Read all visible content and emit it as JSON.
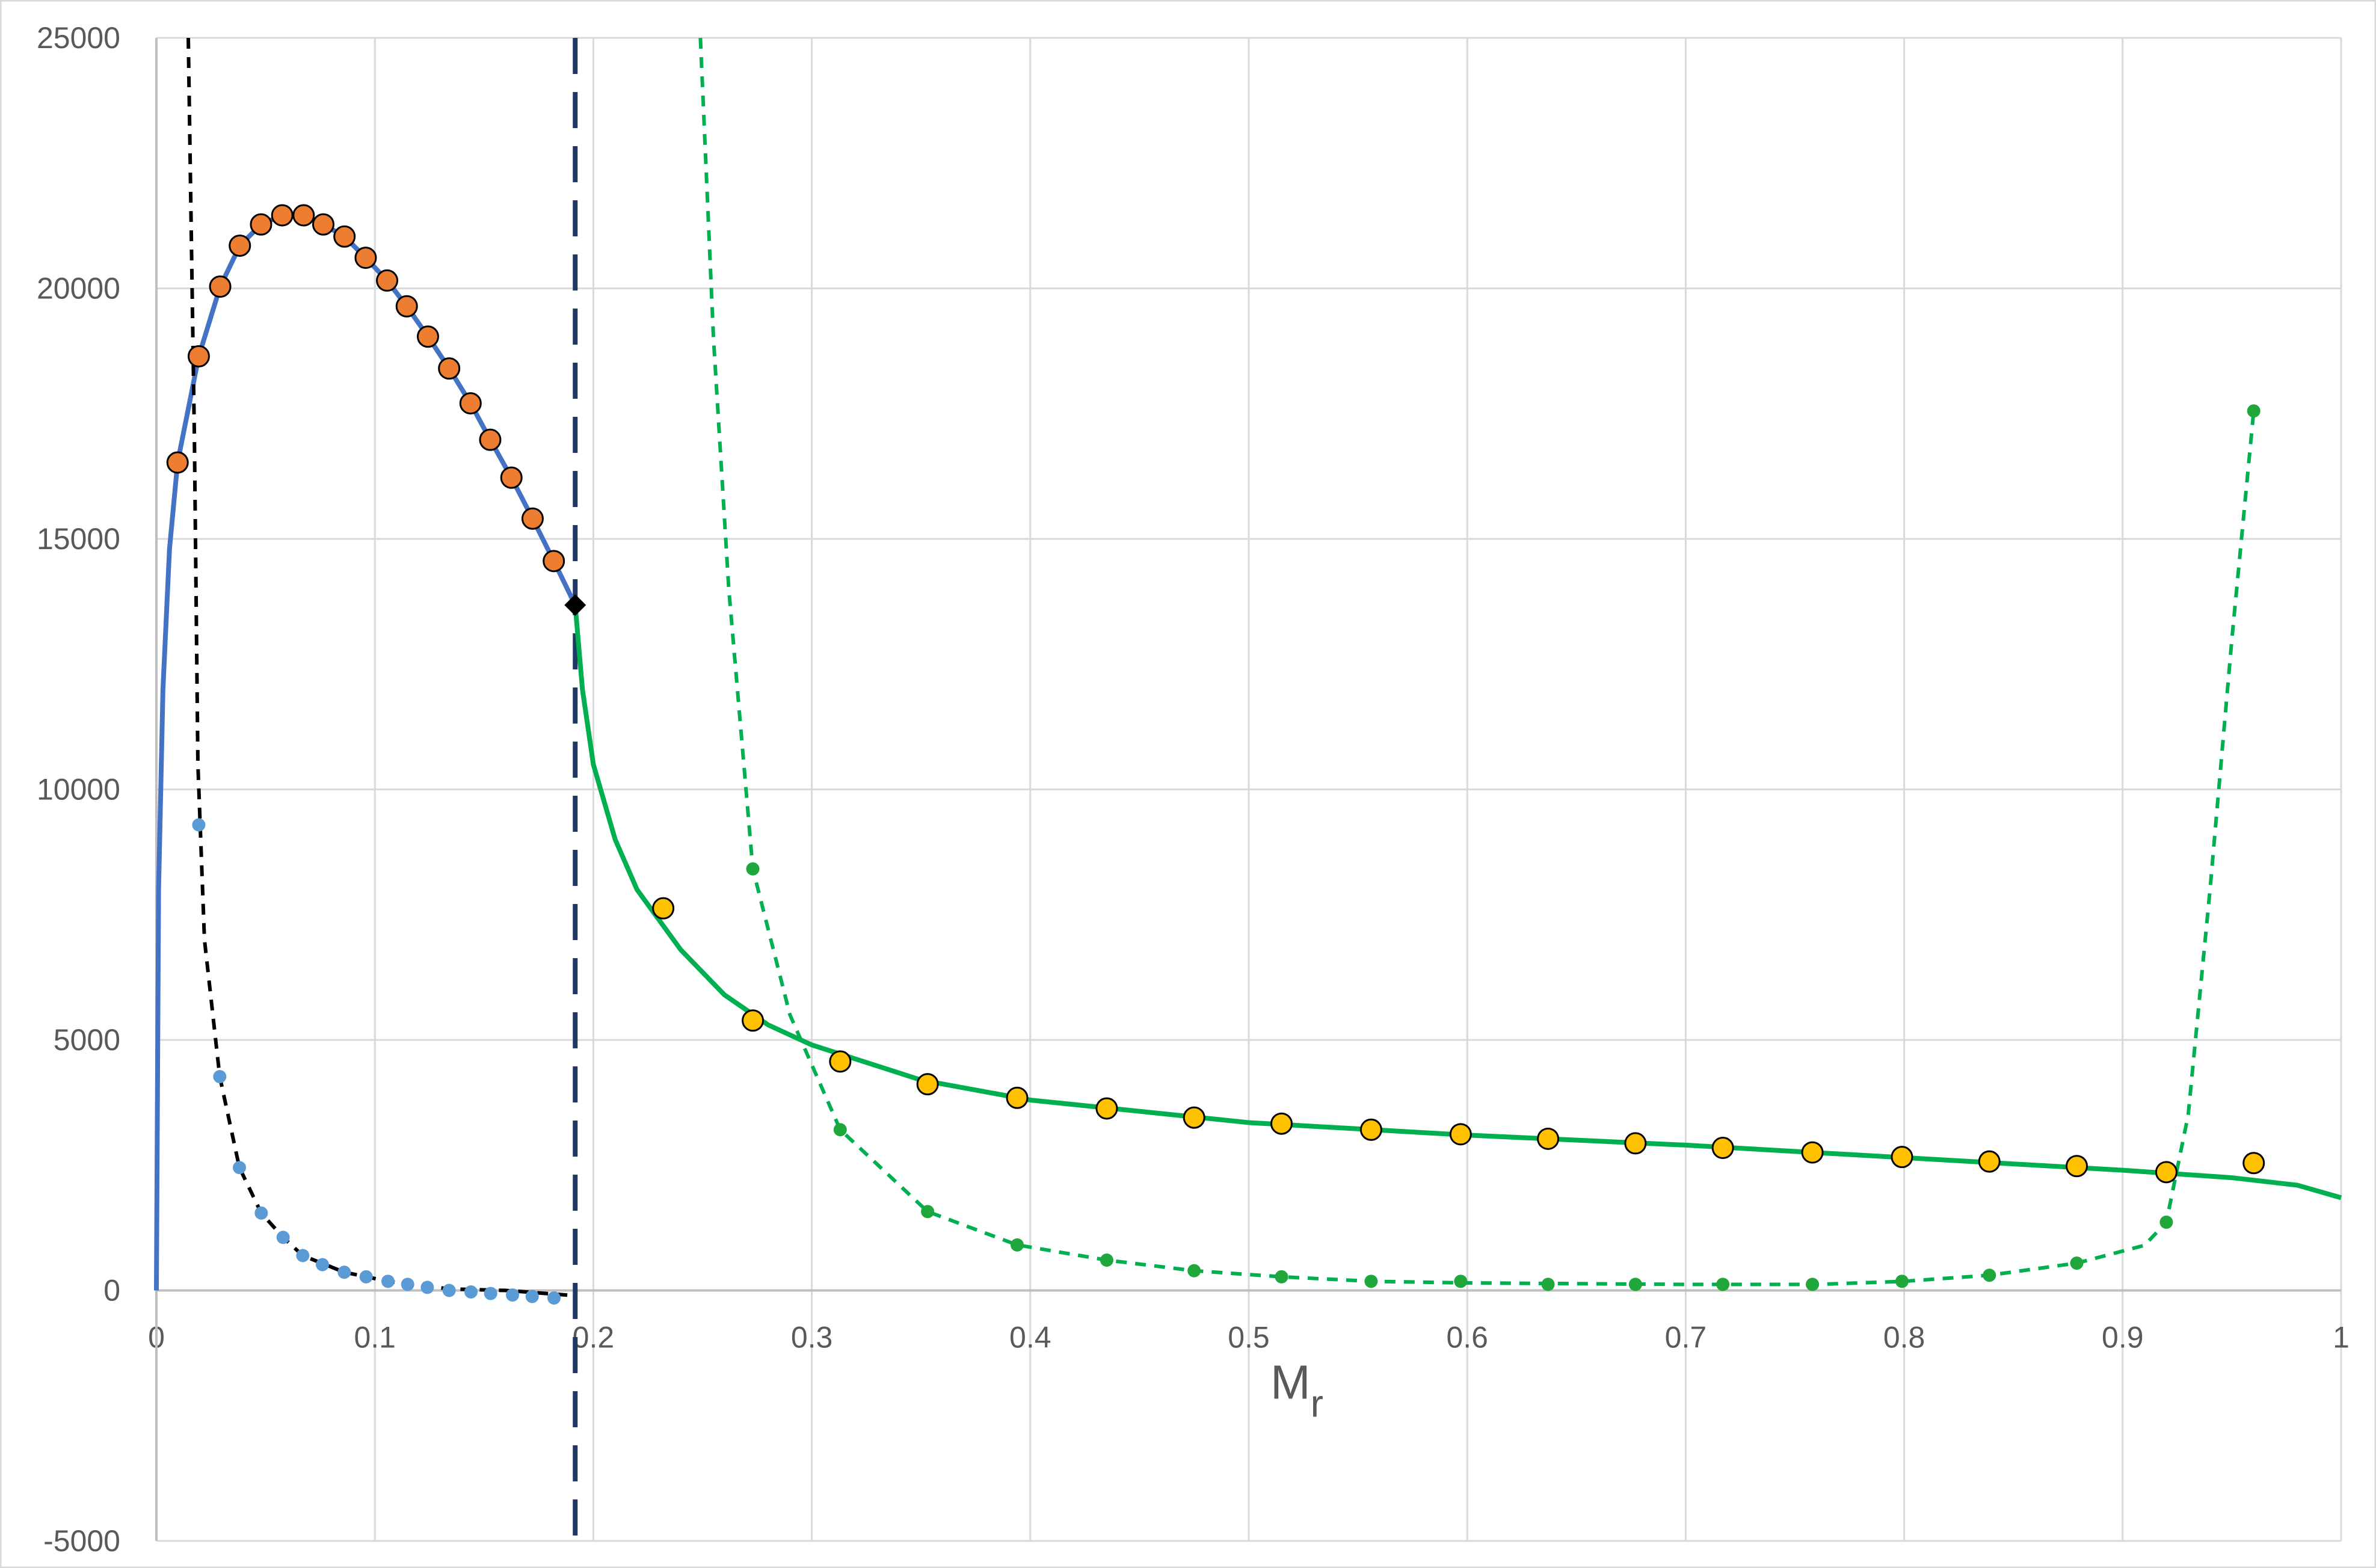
{
  "chart_data": {
    "type": "line",
    "x_label": "M",
    "x_label_subscript": "r",
    "xlim": [
      0,
      1
    ],
    "xticks": [
      0,
      0.1,
      0.2,
      0.3,
      0.4,
      0.5,
      0.6,
      0.7,
      0.8,
      0.9,
      1
    ],
    "ylim": [
      -5000,
      25000
    ],
    "yticks": [
      -5000,
      0,
      5000,
      10000,
      15000,
      20000,
      25000
    ],
    "grid": true,
    "vlines": [
      {
        "x": 0.1917,
        "color": "#1f3864",
        "dash": "long"
      }
    ],
    "series": [
      {
        "kind": "line",
        "color": "#4472c4",
        "dash": "solid",
        "x": [
          0,
          0.001,
          0.003,
          0.006,
          0.0097,
          0.0194,
          0.0292,
          0.0382,
          0.0479,
          0.0576,
          0.0674,
          0.0764,
          0.0861,
          0.0958,
          0.1056,
          0.1146,
          0.1243,
          0.134,
          0.1438,
          0.1528,
          0.1625,
          0.1722,
          0.1819,
          0.1917
        ],
        "values": [
          0,
          8000,
          12000,
          14800,
          16525,
          18645,
          20036,
          20853,
          21277,
          21459,
          21459,
          21277,
          21035,
          20611,
          20157,
          19643,
          19038,
          18402,
          17706,
          16979,
          16223,
          15405,
          14558,
          13680
        ]
      },
      {
        "kind": "line",
        "color": "#000000",
        "dash": "short",
        "x": [
          0.0146,
          0.016,
          0.0174,
          0.019,
          0.022,
          0.029,
          0.038,
          0.048,
          0.058,
          0.067,
          0.086,
          0.106,
          0.134,
          0.16,
          0.19
        ],
        "values": [
          25000,
          21000,
          17000,
          10500,
          7000,
          4268,
          2452,
          1544,
          1059,
          696,
          363,
          182,
          30,
          0,
          -100
        ]
      },
      {
        "kind": "line",
        "color": "#00b050",
        "dash": "solid",
        "x": [
          0.1917,
          0.195,
          0.2,
          0.21,
          0.22,
          0.24,
          0.26,
          0.28,
          0.3,
          0.35,
          0.4,
          0.5,
          0.6,
          0.7,
          0.8,
          0.9,
          0.95,
          0.98,
          1.0
        ],
        "values": [
          13680,
          12000,
          10500,
          9000,
          8000,
          6800,
          5900,
          5300,
          4900,
          4200,
          3800,
          3350,
          3100,
          2900,
          2650,
          2400,
          2250,
          2100,
          1850
        ]
      },
      {
        "kind": "line",
        "color": "#00b050",
        "dash": "short",
        "x": [
          0.249,
          0.255,
          0.262,
          0.273,
          0.29,
          0.313,
          0.353,
          0.394,
          0.435,
          0.475,
          0.515,
          0.556,
          0.6,
          0.7,
          0.76,
          0.8,
          0.839,
          0.879,
          0.91,
          0.92,
          0.93,
          0.94,
          0.95,
          0.96
        ],
        "values": [
          25000,
          19000,
          14000,
          8414,
          5500,
          3208,
          1574,
          908,
          605,
          393,
          272,
          182,
          150,
          120,
          120,
          182,
          303,
          545,
          900,
          1362,
          3500,
          8000,
          13000,
          17554
        ]
      },
      {
        "kind": "scatter",
        "marker": "circle",
        "color": "#ed7d31",
        "edge": "#000000",
        "size": 17,
        "x": [
          0.0097,
          0.0194,
          0.0292,
          0.0382,
          0.0479,
          0.0576,
          0.0674,
          0.0764,
          0.0861,
          0.0958,
          0.1056,
          0.1146,
          0.1243,
          0.134,
          0.1438,
          0.1528,
          0.1625,
          0.1722,
          0.1819
        ],
        "values": [
          16525,
          18645,
          20036,
          20853,
          21277,
          21459,
          21459,
          21277,
          21035,
          20611,
          20157,
          19643,
          19038,
          18402,
          17706,
          16979,
          16223,
          15405,
          14558
        ]
      },
      {
        "kind": "scatter",
        "marker": "circle",
        "color": "#5b9bd5",
        "size": 11,
        "x": [
          0.0194,
          0.029,
          0.038,
          0.048,
          0.058,
          0.067,
          0.076,
          0.086,
          0.096,
          0.106,
          0.115,
          0.124,
          0.134,
          0.144,
          0.153,
          0.163,
          0.172,
          0.182
        ],
        "values": [
          9292,
          4268,
          2452,
          1544,
          1059,
          696,
          515,
          363,
          272,
          182,
          121,
          61,
          0,
          -30,
          -61,
          -91,
          -121,
          -151
        ]
      },
      {
        "kind": "scatter",
        "marker": "diamond",
        "color": "#000000",
        "size": 18,
        "x": [
          0.1917
        ],
        "values": [
          13680
        ]
      },
      {
        "kind": "scatter",
        "marker": "circle",
        "color": "#ffc000",
        "edge": "#000000",
        "size": 17,
        "x": [
          0.232,
          0.273,
          0.313,
          0.353,
          0.394,
          0.435,
          0.475,
          0.515,
          0.556,
          0.597,
          0.637,
          0.677,
          0.717,
          0.758,
          0.799,
          0.839,
          0.879,
          0.92,
          0.96
        ],
        "values": [
          7627,
          5387,
          4570,
          4116,
          3844,
          3632,
          3450,
          3329,
          3208,
          3117,
          3027,
          2936,
          2845,
          2754,
          2663,
          2573,
          2482,
          2361,
          2542
        ]
      },
      {
        "kind": "scatter",
        "marker": "circle",
        "color": "#1fa73c",
        "size": 11,
        "x": [
          0.273,
          0.313,
          0.353,
          0.394,
          0.435,
          0.475,
          0.515,
          0.556,
          0.597,
          0.637,
          0.677,
          0.717,
          0.758,
          0.799,
          0.839,
          0.879,
          0.92,
          0.96
        ],
        "values": [
          8414,
          3208,
          1574,
          908,
          605,
          393,
          272,
          182,
          182,
          121,
          121,
          121,
          121,
          182,
          303,
          545,
          1362,
          17554
        ]
      }
    ]
  }
}
